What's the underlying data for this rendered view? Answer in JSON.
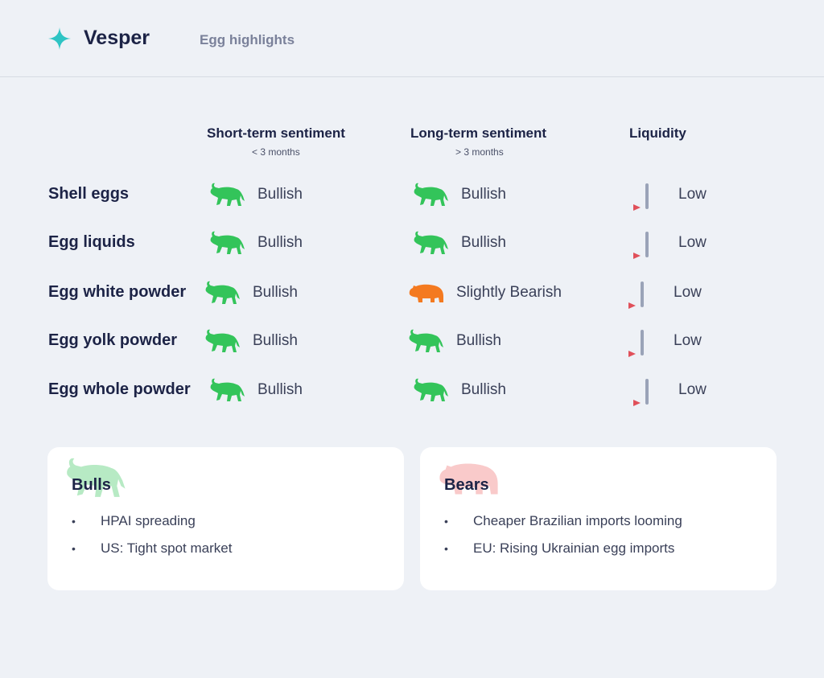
{
  "header": {
    "brand": "Vesper",
    "title": "Egg highlights"
  },
  "table": {
    "columns": [
      {
        "title": "Short-term sentiment",
        "subtitle": "< 3 months"
      },
      {
        "title": "Long-term sentiment",
        "subtitle": "> 3 months"
      },
      {
        "title": "Liquidity"
      }
    ],
    "rows": [
      [
        "Shell eggs",
        "Bullish",
        "Bullish",
        "Low"
      ],
      [
        "Egg liquids",
        "Bullish",
        "Bullish",
        "Low"
      ],
      [
        "Egg white powder",
        "Bullish",
        "Slightly Bearish",
        "Low"
      ],
      [
        "Egg yolk powder",
        "Bullish",
        "Bullish",
        "Low"
      ],
      [
        "Egg whole powder",
        "Bullish",
        "Bullish",
        "Low"
      ]
    ]
  },
  "cards": [
    {
      "title": "Bulls",
      "items": [
        "HPAI spreading",
        "US: Tight spot market"
      ]
    },
    {
      "title": "Bears",
      "items": [
        "Cheaper Brazilian imports looming",
        "EU: Rising Ukrainian egg imports"
      ]
    }
  ]
}
